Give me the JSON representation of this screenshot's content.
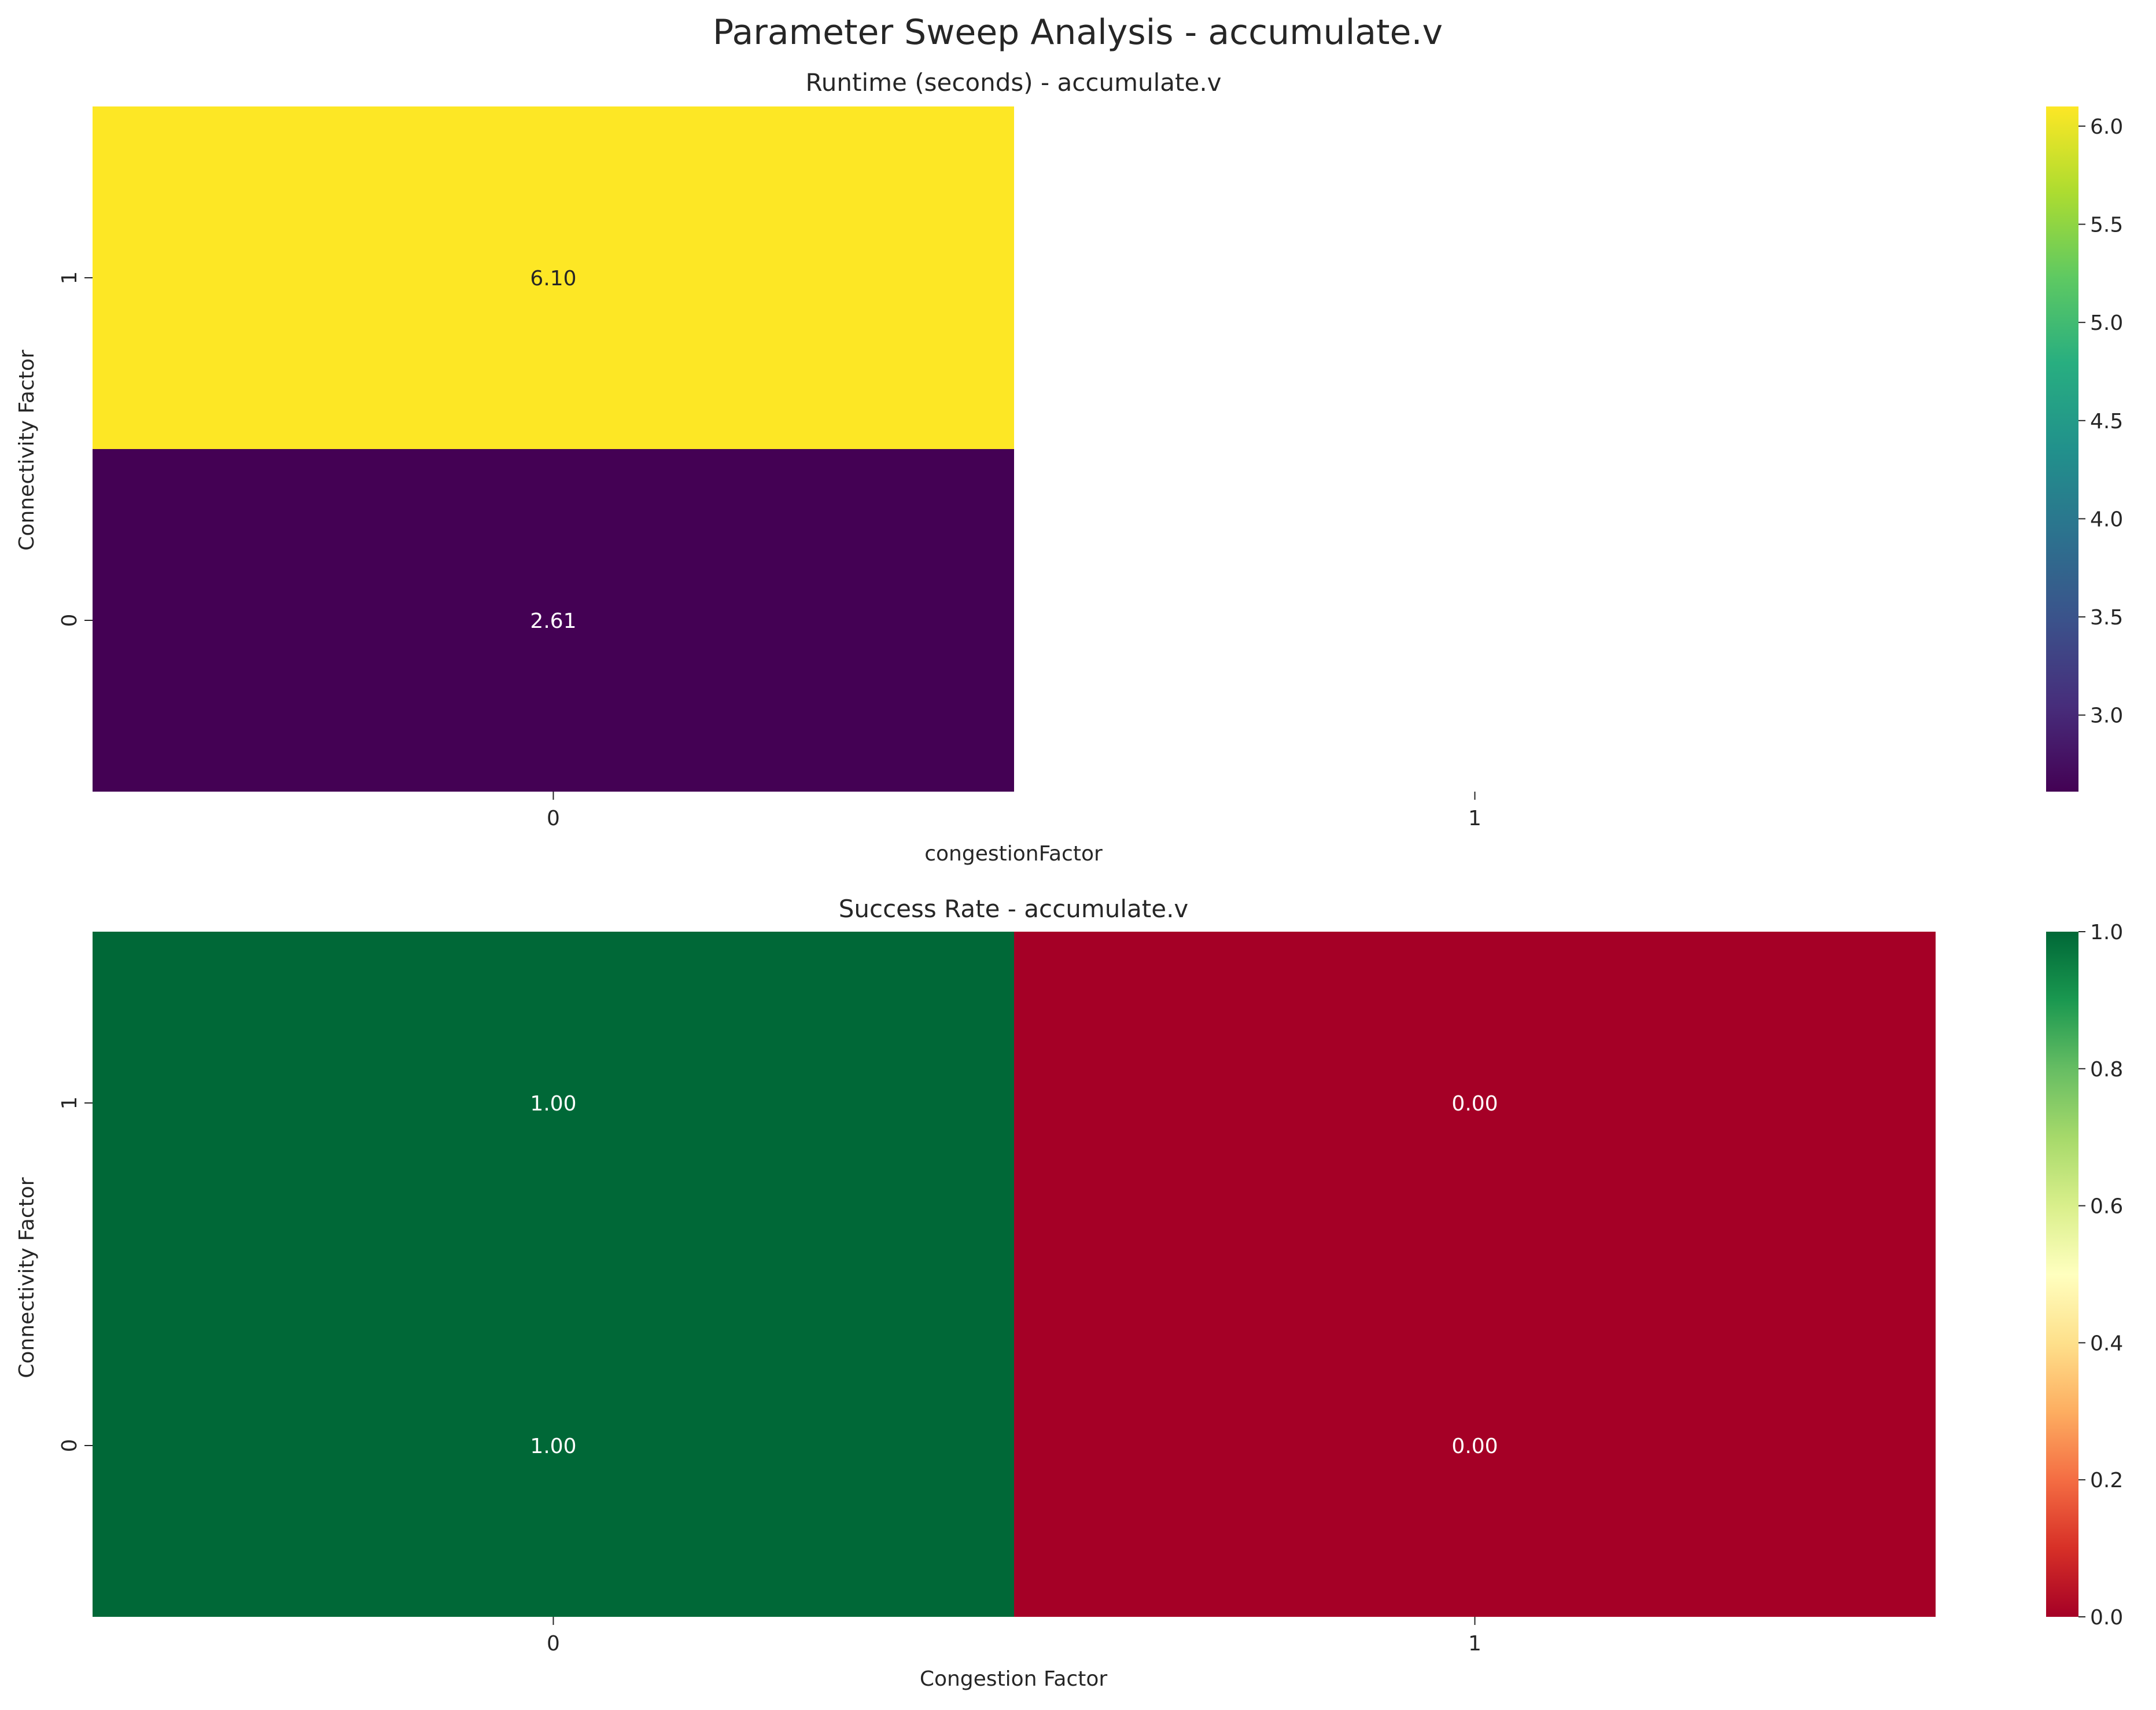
{
  "suptitle": "Parameter Sweep Analysis - accumulate.v",
  "chart_data": [
    {
      "type": "heatmap",
      "title": "Runtime (seconds) - accumulate.v",
      "xlabel": "congestionFactor",
      "ylabel": "Connectivity Factor",
      "x": [
        "0",
        "1"
      ],
      "y": [
        "1",
        "0"
      ],
      "values": [
        [
          6.1,
          null
        ],
        [
          2.61,
          null
        ]
      ],
      "annotations": [
        [
          "6.10",
          ""
        ],
        [
          "2.61",
          ""
        ]
      ],
      "colormap": "viridis",
      "colorbar": {
        "vmin": 2.61,
        "vmax": 6.1,
        "ticks": [
          3.0,
          3.5,
          4.0,
          4.5,
          5.0,
          5.5,
          6.0
        ],
        "tick_labels": [
          "3.0",
          "3.5",
          "4.0",
          "4.5",
          "5.0",
          "5.5",
          "6.0"
        ]
      },
      "colors": {
        "high": "#fde725",
        "low": "#440154",
        "annot_high": "#262626",
        "annot_low": "#ffffff"
      }
    },
    {
      "type": "heatmap",
      "title": "Success Rate - accumulate.v",
      "xlabel": "Congestion Factor",
      "ylabel": "Connectivity Factor",
      "x": [
        "0",
        "1"
      ],
      "y": [
        "1",
        "0"
      ],
      "values": [
        [
          1.0,
          0.0
        ],
        [
          1.0,
          0.0
        ]
      ],
      "annotations": [
        [
          "1.00",
          "0.00"
        ],
        [
          "1.00",
          "0.00"
        ]
      ],
      "colormap": "RdYlGn",
      "colorbar": {
        "vmin": 0.0,
        "vmax": 1.0,
        "ticks": [
          0.0,
          0.2,
          0.4,
          0.6,
          0.8,
          1.0
        ],
        "tick_labels": [
          "0.0",
          "0.2",
          "0.4",
          "0.6",
          "0.8",
          "1.0"
        ]
      },
      "colors": {
        "high": "#006837",
        "low": "#a50026",
        "annot": "#ffffff"
      }
    }
  ]
}
